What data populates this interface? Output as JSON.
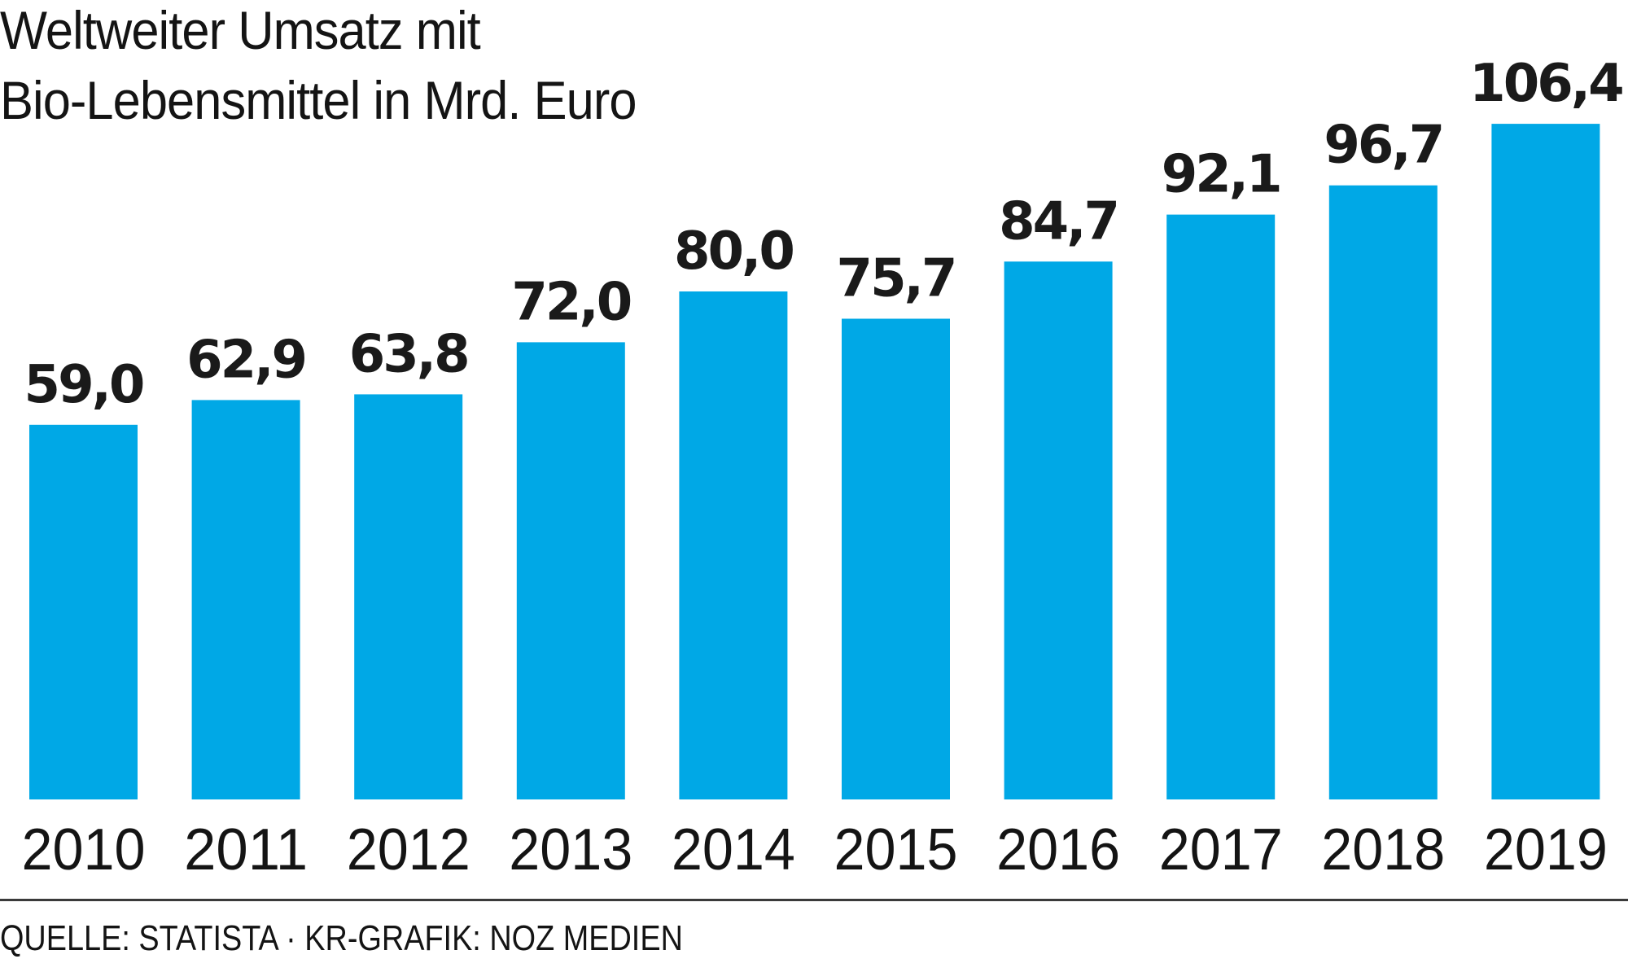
{
  "chart_data": {
    "type": "bar",
    "title": "Weltweiter Umsatz mit Bio-Lebensmittel in Mrd. Euro",
    "title_lines": [
      "Weltweiter Umsatz mit",
      "Bio-Lebensmittel in Mrd. Euro"
    ],
    "xlabel": "",
    "ylabel": "",
    "categories": [
      "2010",
      "2011",
      "2012",
      "2013",
      "2014",
      "2015",
      "2016",
      "2017",
      "2018",
      "2019"
    ],
    "values": [
      59.0,
      62.9,
      63.8,
      72.0,
      80.0,
      75.7,
      84.7,
      92.1,
      96.7,
      106.4
    ],
    "value_labels": [
      "59,0",
      "62,9",
      "63,8",
      "72,0",
      "80,0",
      "75,7",
      "84,7",
      "92,1",
      "96,7",
      "106,4"
    ],
    "ylim": [
      0,
      110
    ],
    "grid": false,
    "legend": "none",
    "bar_color": "#00a8e6",
    "label_color": "#1a1a1a"
  },
  "footer": {
    "source": "QUELLE: STATISTA · KR-GRAFIK: NOZ MEDIEN"
  }
}
